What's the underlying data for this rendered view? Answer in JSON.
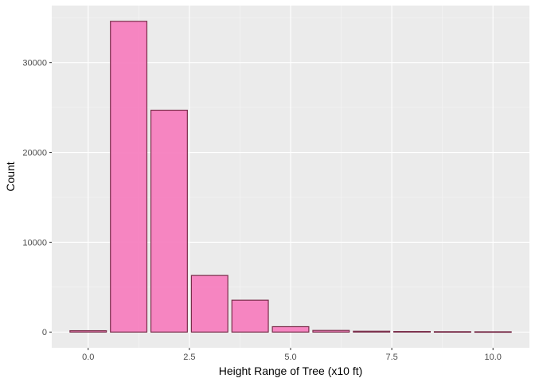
{
  "chart_data": {
    "type": "bar",
    "xlabel": "Height Range of Tree (x10 ft)",
    "ylabel": "Count",
    "x": [
      0,
      1,
      2,
      3,
      4,
      5,
      6,
      7,
      8,
      9,
      10
    ],
    "values": [
      150,
      34600,
      24700,
      6300,
      3550,
      600,
      180,
      90,
      60,
      40,
      30
    ],
    "xlim": [
      -0.9,
      10.9
    ],
    "ylim": [
      -1750,
      36350
    ],
    "x_ticks": [
      0,
      2.5,
      5,
      7.5,
      10
    ],
    "x_tick_labels": [
      "0.0",
      "2.5",
      "5.0",
      "7.5",
      "10.0"
    ],
    "y_ticks": [
      0,
      10000,
      20000,
      30000
    ],
    "y_tick_labels": [
      "0",
      "10000",
      "20000",
      "30000"
    ],
    "bar_width": 0.9,
    "grid": true,
    "legend": "none",
    "colors": {
      "panel_background": "#ebebeb",
      "grid_major": "#ffffff",
      "grid_minor": "#f5f5f5",
      "bar_fill": "#f780bf",
      "bar_outline": "#7a2d4a",
      "tick_color": "#333333"
    }
  }
}
